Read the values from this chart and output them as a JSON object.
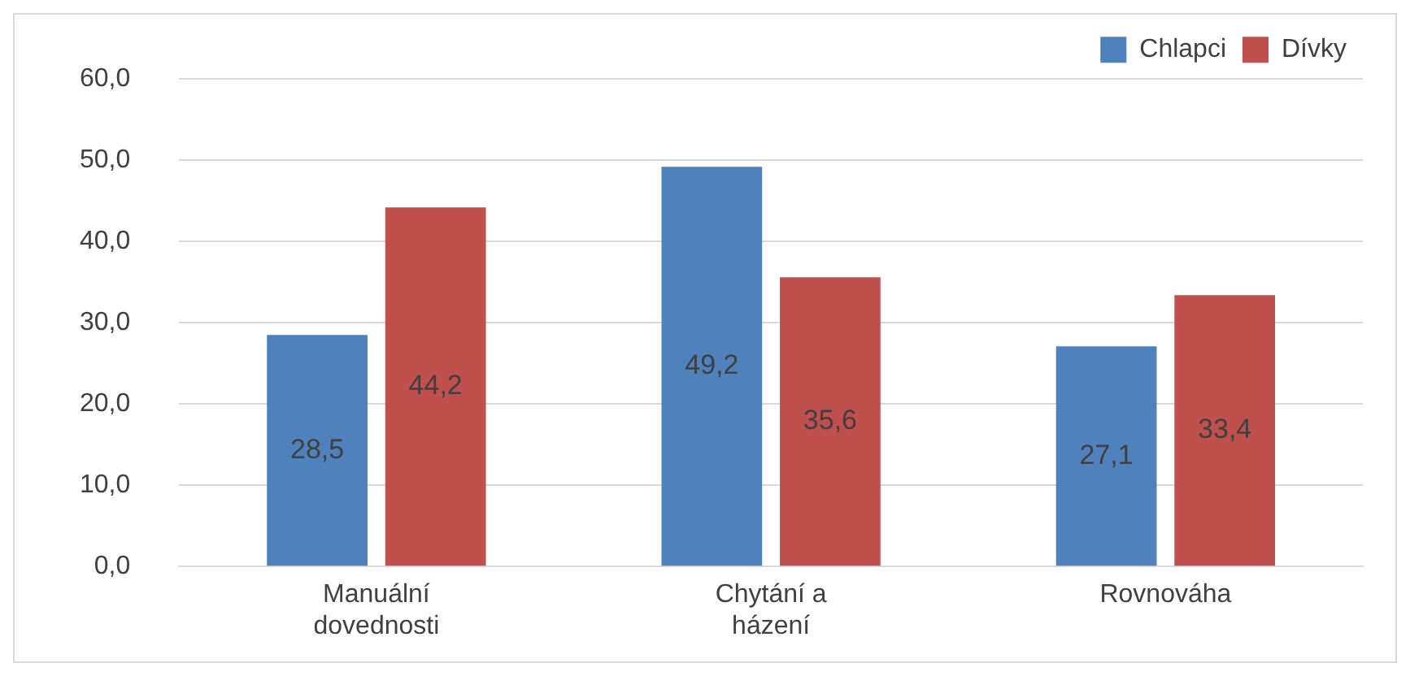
{
  "chart_data": {
    "type": "bar",
    "categories": [
      "Manuální dovednosti",
      "Chytání a házení",
      "Rovnováha"
    ],
    "series": [
      {
        "name": "Chlapci",
        "color": "#4f81bd",
        "values": [
          28.5,
          49.2,
          27.1
        ],
        "value_labels": [
          "28,5",
          "49,2",
          "27,1"
        ]
      },
      {
        "name": "Dívky",
        "color": "#c0504d",
        "values": [
          44.2,
          35.6,
          33.4
        ],
        "value_labels": [
          "44,2",
          "35,6",
          "33,4"
        ]
      }
    ],
    "ylim": [
      0,
      60
    ],
    "yticks": [
      {
        "value": 0,
        "label": "0,0"
      },
      {
        "value": 10,
        "label": "10,0"
      },
      {
        "value": 20,
        "label": "20,0"
      },
      {
        "value": 30,
        "label": "30,0"
      },
      {
        "value": 40,
        "label": "40,0"
      },
      {
        "value": 50,
        "label": "50,0"
      },
      {
        "value": 60,
        "label": "60,0"
      }
    ],
    "grid": "y",
    "legend": "top right"
  }
}
